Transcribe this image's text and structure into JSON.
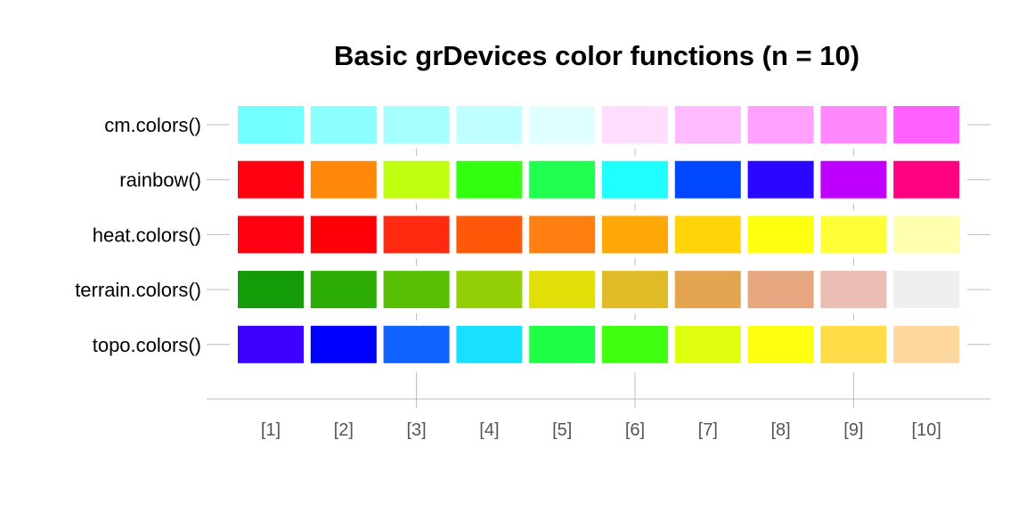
{
  "chart_data": {
    "type": "heatmap",
    "title": "Basic grDevices color functions (n = 10)",
    "xlabel": "",
    "ylabel": "",
    "grid": false,
    "categories": [
      "[1]",
      "[2]",
      "[3]",
      "[4]",
      "[5]",
      "[6]",
      "[7]",
      "[8]",
      "[9]",
      "[10]"
    ],
    "series": [
      {
        "name": "cm.colors()",
        "values": [
          "#73FFFF",
          "#8CFFFF",
          "#A6FFFF",
          "#C0FFFF",
          "#E0FFFF",
          "#FFDDFF",
          "#FFBBFF",
          "#FFA0FF",
          "#FF88FF",
          "#FF60FF"
        ]
      },
      {
        "name": "rainbow()",
        "values": [
          "#FF0010",
          "#FF8808",
          "#C0FF10",
          "#33FF10",
          "#20FF50",
          "#20FFFF",
          "#0048FF",
          "#2A08FF",
          "#C000FF",
          "#FF0080"
        ]
      },
      {
        "name": "heat.colors()",
        "values": [
          "#FF0010",
          "#FF0008",
          "#FF2A10",
          "#FF5808",
          "#FF8010",
          "#FFA808",
          "#FFD408",
          "#FFFF10",
          "#FFFF38",
          "#FFFFB0"
        ]
      },
      {
        "name": "terrain.colors()",
        "values": [
          "#139B08",
          "#2BAD05",
          "#58BF05",
          "#93D005",
          "#E0E008",
          "#E0BB28",
          "#E4A450",
          "#E6A680",
          "#EABDB5",
          "#EFEFEF"
        ]
      },
      {
        "name": "topo.colors()",
        "values": [
          "#3B00FF",
          "#0000FF",
          "#0F64FF",
          "#18E0FF",
          "#20FF48",
          "#40FF10",
          "#E0FF10",
          "#FFFF10",
          "#FFDC48",
          "#FFD8A0"
        ]
      }
    ],
    "major_x_ticks": [
      "[3]",
      "[6]",
      "[9]"
    ]
  }
}
